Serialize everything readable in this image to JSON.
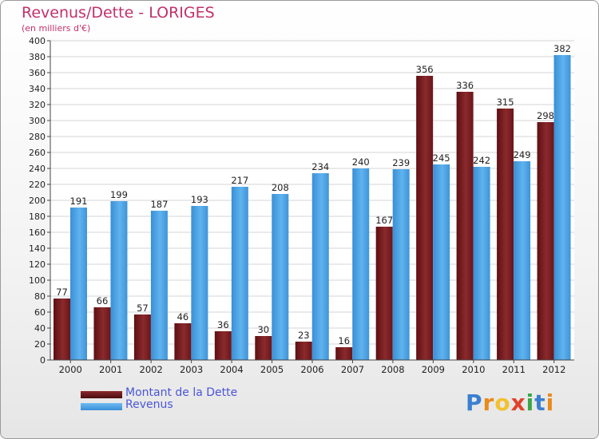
{
  "title": "Revenus/Dette - LORIGES",
  "subtitle": "(en milliers d'€)",
  "logo": "Proxiti",
  "legend": {
    "dette": "Montant de la Dette",
    "revenus": "Revenus"
  },
  "colors": {
    "dette": "#7a1a1e",
    "revenus": "#4ea6e6",
    "grid": "#d4d4d4",
    "axis_text": "#222222"
  },
  "chart_data": {
    "type": "bar",
    "title": "Revenus/Dette - LORIGES",
    "subtitle": "(en milliers d'€)",
    "categories": [
      "2000",
      "2001",
      "2002",
      "2003",
      "2004",
      "2005",
      "2006",
      "2007",
      "2008",
      "2009",
      "2010",
      "2011",
      "2012"
    ],
    "series": [
      {
        "name": "Montant de la Dette",
        "values": [
          77,
          66,
          57,
          46,
          36,
          30,
          23,
          16,
          167,
          356,
          336,
          315,
          298
        ]
      },
      {
        "name": "Revenus",
        "values": [
          191,
          199,
          187,
          193,
          217,
          208,
          234,
          240,
          239,
          245,
          242,
          249,
          382
        ]
      }
    ],
    "ylim": [
      0,
      400
    ],
    "ytick_step": 20,
    "grid": true,
    "legend_position": "bottom-left"
  }
}
